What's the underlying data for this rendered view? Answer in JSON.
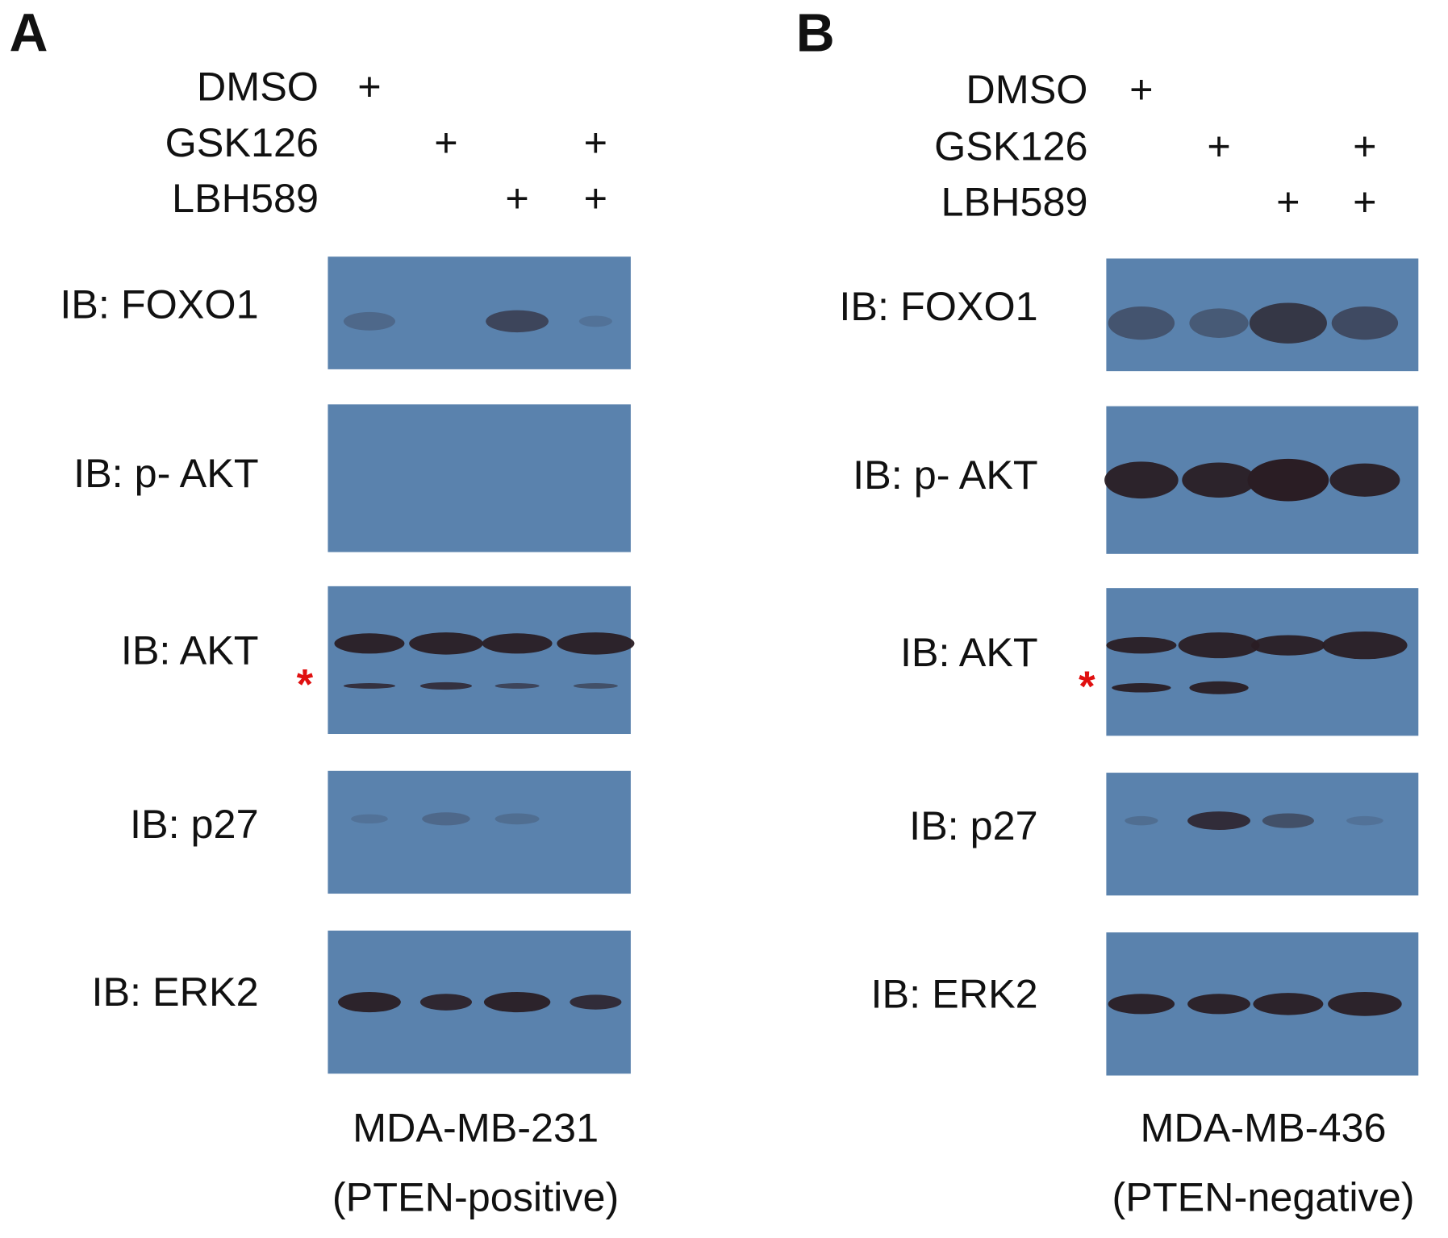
{
  "panels": [
    {
      "letter": "A",
      "treatments": [
        {
          "name": "DMSO",
          "marks": [
            "+",
            null,
            null,
            null
          ]
        },
        {
          "name": "GSK126",
          "marks": [
            null,
            "+",
            null,
            "+"
          ]
        },
        {
          "name": "LBH589",
          "marks": [
            null,
            null,
            "+",
            "+"
          ]
        }
      ],
      "blots": [
        {
          "label": "IB: FOXO1"
        },
        {
          "label": "IB: p- AKT"
        },
        {
          "label": "IB: AKT",
          "asterisk": "*"
        },
        {
          "label": "IB: p27"
        },
        {
          "label": "IB: ERK2"
        }
      ],
      "cell_line": "MDA-MB-231",
      "status": "(PTEN-positive)"
    },
    {
      "letter": "B",
      "treatments": [
        {
          "name": "DMSO",
          "marks": [
            "+",
            null,
            null,
            null
          ]
        },
        {
          "name": "GSK126",
          "marks": [
            null,
            "+",
            null,
            "+"
          ]
        },
        {
          "name": "LBH589",
          "marks": [
            null,
            null,
            "+",
            "+"
          ]
        }
      ],
      "blots": [
        {
          "label": "IB: FOXO1"
        },
        {
          "label": "IB: p- AKT"
        },
        {
          "label": "IB: AKT",
          "asterisk": "*"
        },
        {
          "label": "IB: p27"
        },
        {
          "label": "IB: ERK2"
        }
      ],
      "cell_line": "MDA-MB-436",
      "status": "(PTEN-negative)"
    }
  ]
}
